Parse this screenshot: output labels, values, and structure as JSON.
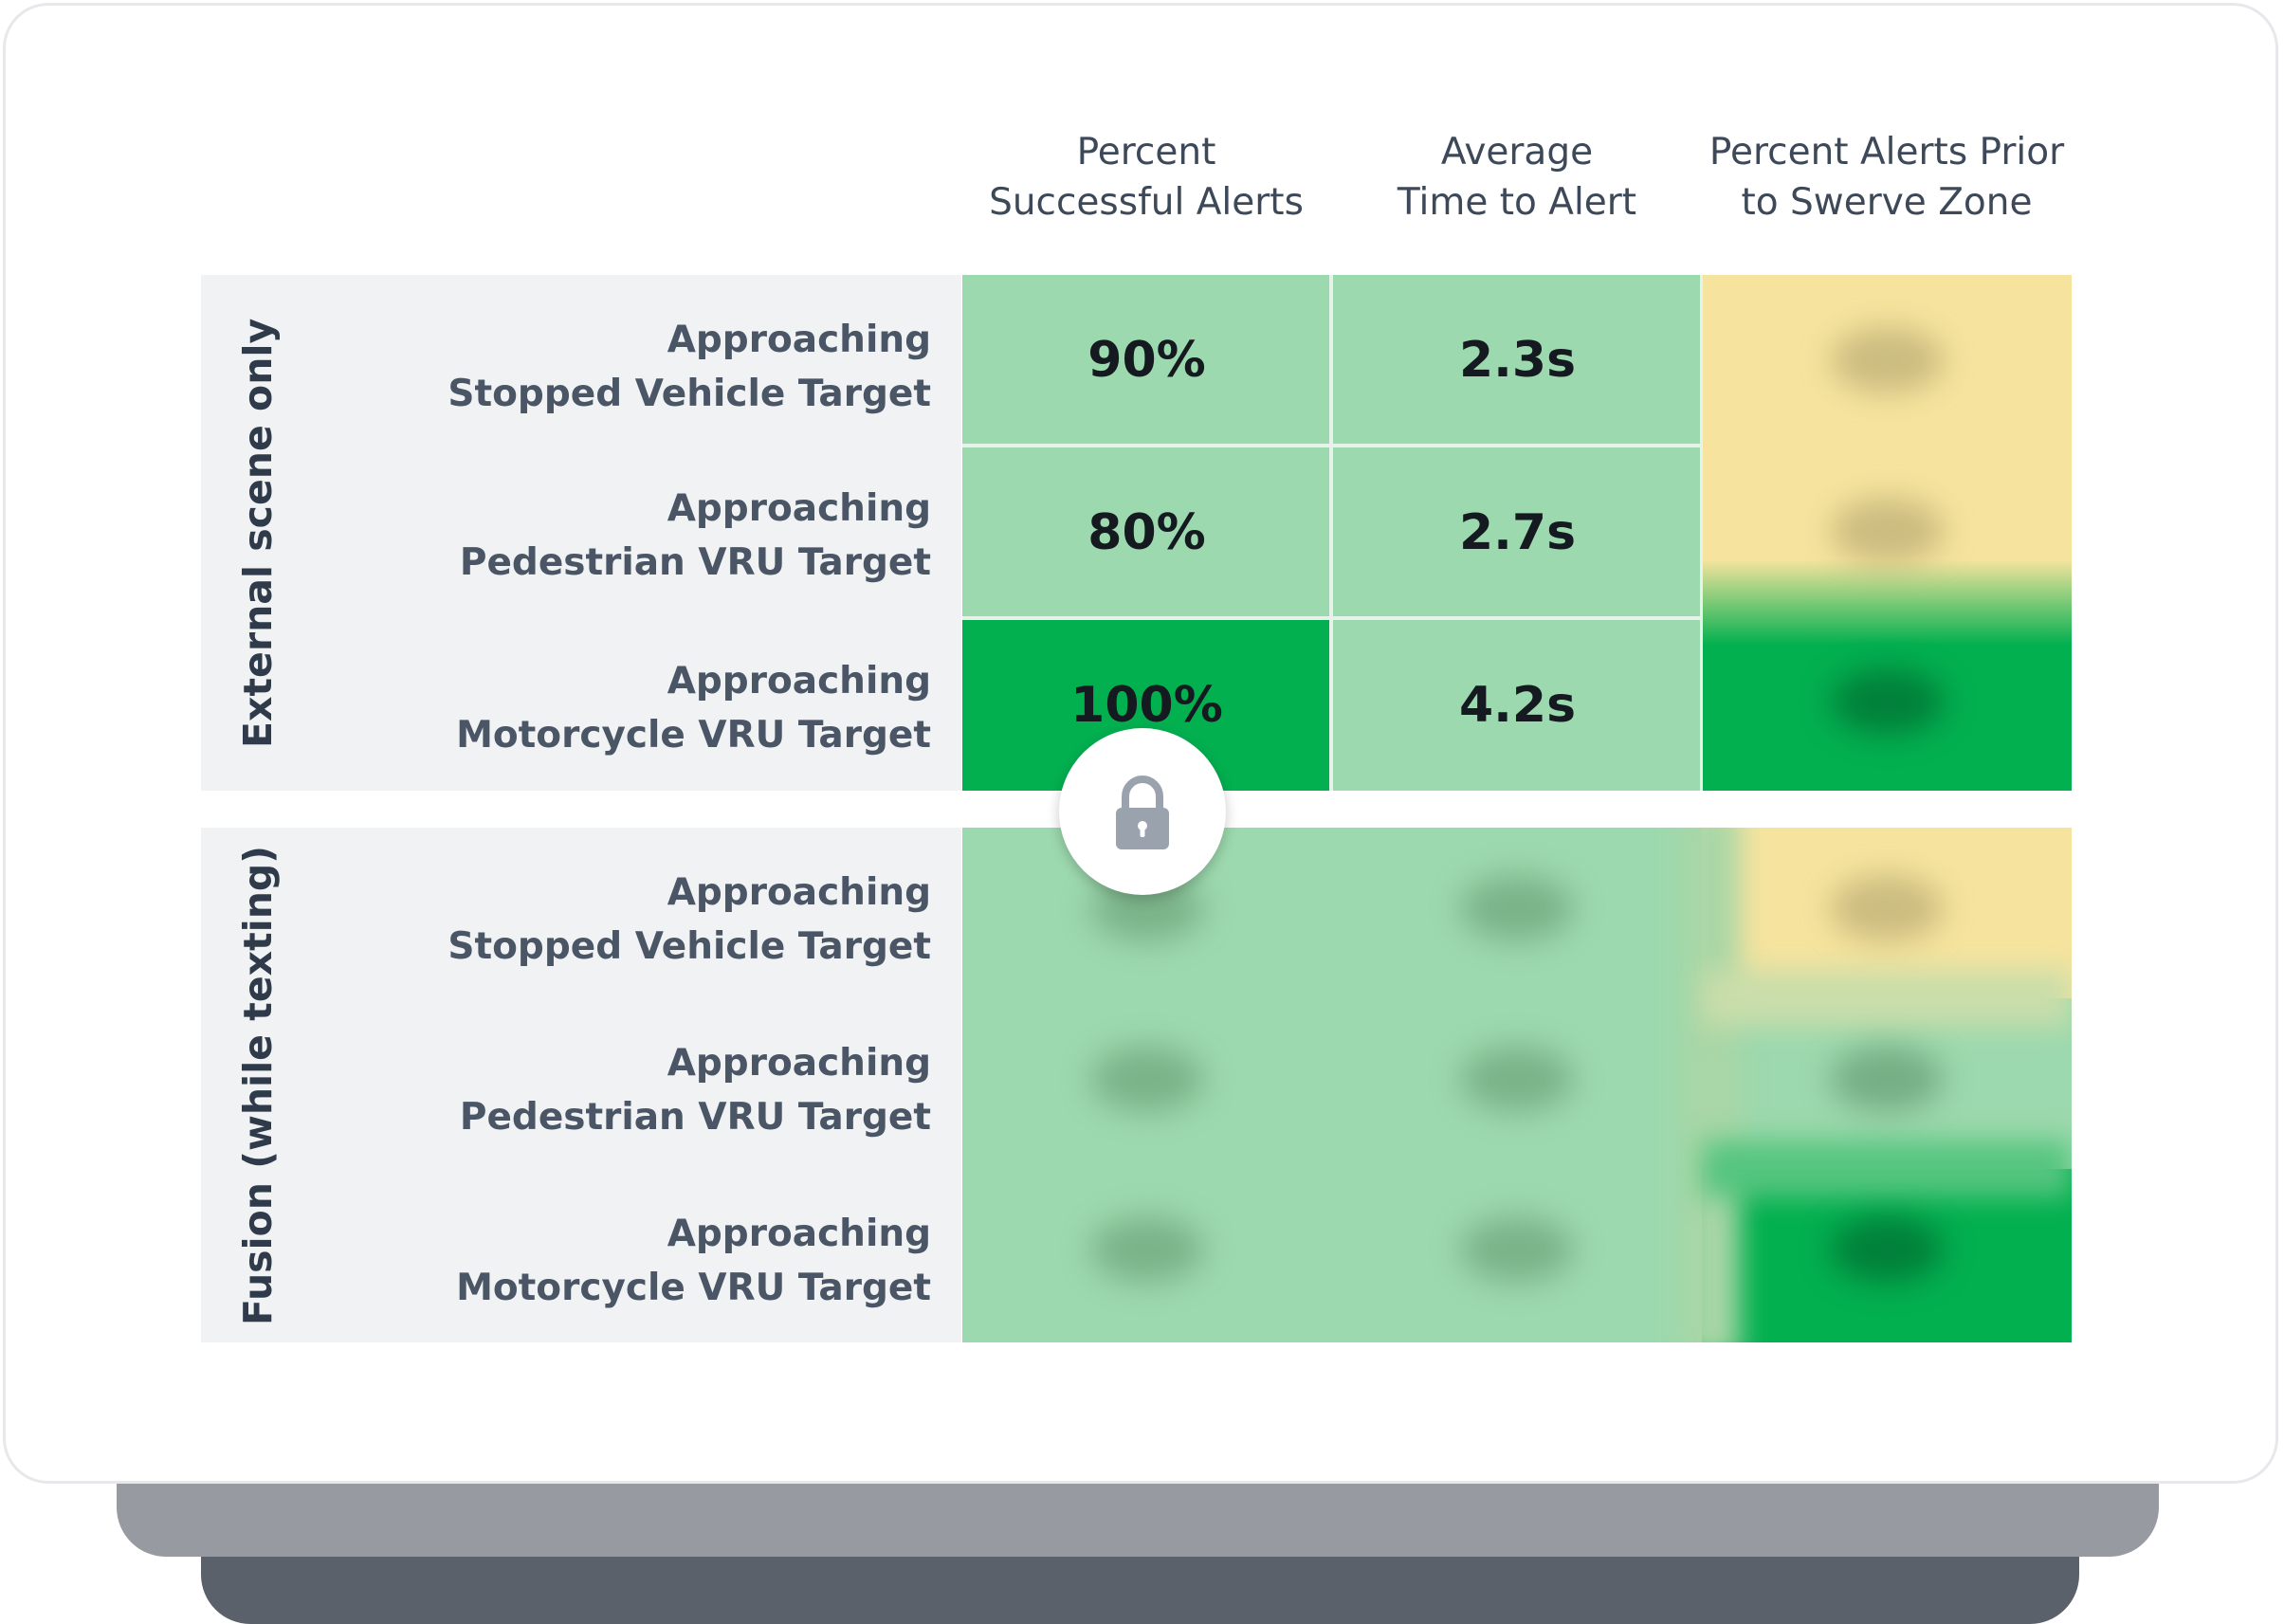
{
  "columns": [
    "Percent\nSuccessful Alerts",
    "Average\nTime to Alert",
    "Percent Alerts Prior\nto Swerve Zone"
  ],
  "groups": [
    {
      "label": "External scene only",
      "rows": [
        {
          "label_line1": "Approaching",
          "label_line2": "Stopped Vehicle Target",
          "percent_successful": "90%",
          "avg_time": "2.3s"
        },
        {
          "label_line1": "Approaching",
          "label_line2": "Pedestrian VRU Target",
          "percent_successful": "80%",
          "avg_time": "2.7s"
        },
        {
          "label_line1": "Approaching",
          "label_line2": "Motorcycle VRU Target",
          "percent_successful": "100%",
          "avg_time": "4.2s"
        }
      ]
    },
    {
      "label": "Fusion (while texting)",
      "rows": [
        {
          "label_line1": "Approaching",
          "label_line2": "Stopped Vehicle Target"
        },
        {
          "label_line1": "Approaching",
          "label_line2": "Pedestrian VRU Target"
        },
        {
          "label_line1": "Approaching",
          "label_line2": "Motorcycle VRU Target"
        }
      ]
    }
  ],
  "colors": {
    "light_green": "#9dd9ae",
    "dark_green": "#03b050",
    "yellow": "#f6e49e",
    "label_bg": "#f1f2f4"
  },
  "icons": {
    "lock": "lock-icon"
  }
}
